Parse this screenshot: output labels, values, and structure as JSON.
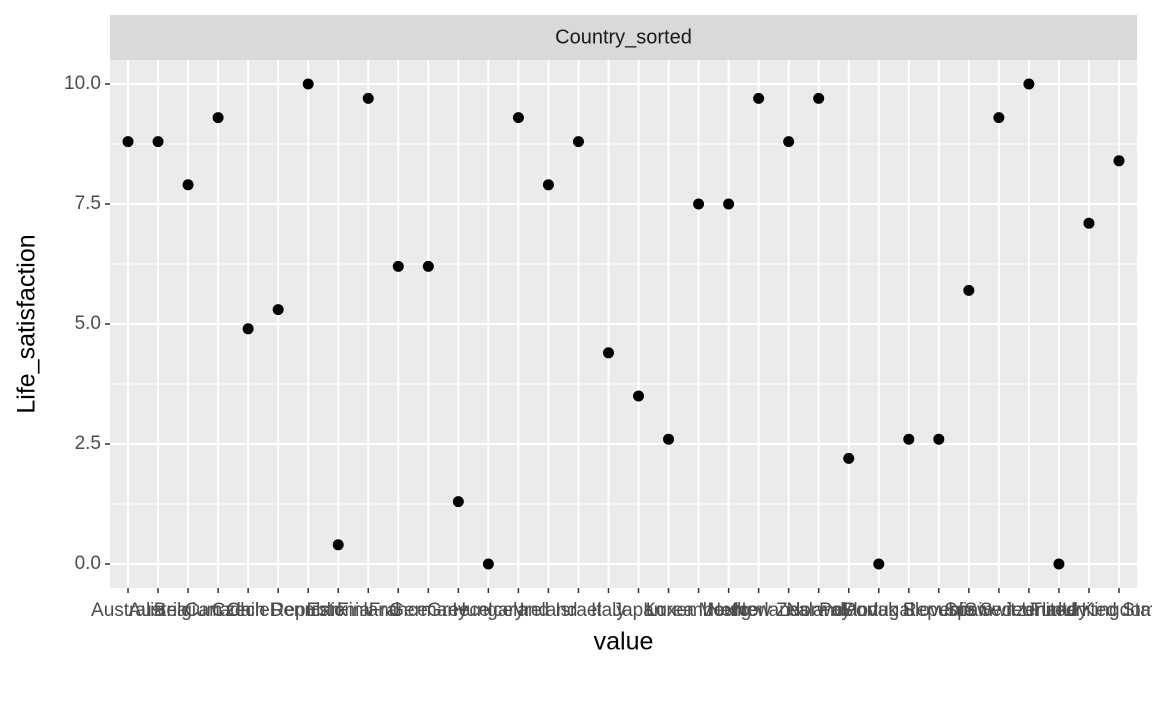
{
  "chart_data": {
    "type": "scatter",
    "strip_title": "Country_sorted",
    "x_label": "value",
    "y_label": "Life_satisfaction",
    "categories": [
      "Australia",
      "Austria",
      "Belgium",
      "Canada",
      "Chile",
      "Czech Republic",
      "Denmark",
      "Estonia",
      "Finland",
      "France",
      "Germany",
      "Greece",
      "Hungary",
      "Iceland",
      "Ireland",
      "Israel",
      "Italy",
      "Japan",
      "Korea",
      "Luxembourg",
      "Mexico",
      "Netherlands",
      "New Zealand",
      "Norway",
      "Poland",
      "Portugal",
      "Slovak Republic",
      "Slovenia",
      "Spain",
      "Sweden",
      "Switzerland",
      "Turkey",
      "United Kingdom",
      "United States"
    ],
    "values": [
      8.8,
      8.8,
      7.9,
      9.3,
      4.9,
      5.3,
      10,
      0.4,
      9.7,
      6.2,
      6.2,
      1.3,
      0,
      9.3,
      7.9,
      8.8,
      4.4,
      3.5,
      2.6,
      7.5,
      7.5,
      9.7,
      8.8,
      9.7,
      2.2,
      0,
      2.6,
      2.6,
      5.7,
      9.3,
      10,
      0,
      7.1,
      8.4
    ],
    "color": "#000000",
    "ylim": [
      -0.5,
      10.5
    ],
    "yticks": [
      {
        "value": 0,
        "label": "0.0"
      },
      {
        "value": 2.5,
        "label": "2.5"
      },
      {
        "value": 5,
        "label": "5.0"
      },
      {
        "value": 7.5,
        "label": "7.5"
      },
      {
        "value": 10,
        "label": "10.0"
      }
    ],
    "grid": true
  }
}
